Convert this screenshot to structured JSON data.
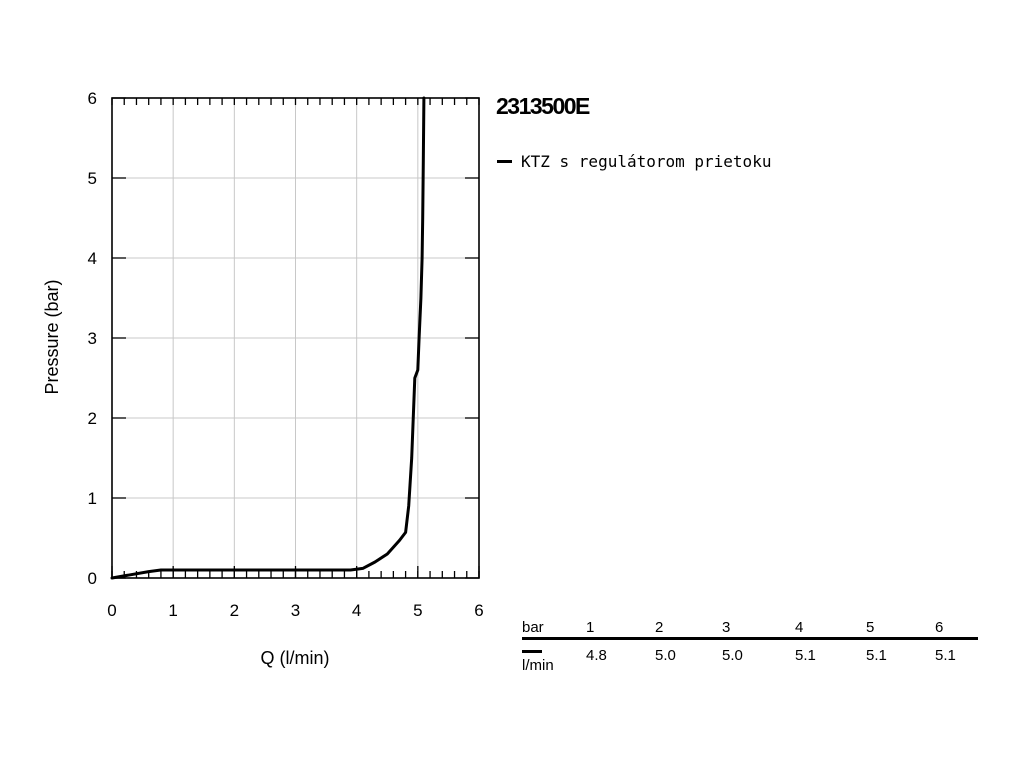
{
  "chart_data": {
    "type": "line",
    "title": "2313500E",
    "xlabel": "Q (l/min)",
    "ylabel": "Pressure (bar)",
    "xlim": [
      0,
      6
    ],
    "ylim": [
      0,
      6
    ],
    "x_ticks": [
      "0",
      "1",
      "2",
      "3",
      "4",
      "5",
      "6"
    ],
    "y_ticks": [
      "0",
      "1",
      "2",
      "3",
      "4",
      "5",
      "6"
    ],
    "grid": true,
    "legend_position": "right",
    "series": [
      {
        "name": "KTZ s regulátorom prietoku",
        "color": "#000000",
        "x": [
          0.0,
          0.3,
          0.6,
          0.8,
          1.0,
          2.0,
          3.0,
          3.9,
          4.1,
          4.3,
          4.5,
          4.7,
          4.8,
          4.85,
          4.9,
          4.95,
          5.0,
          5.02,
          5.05,
          5.07,
          5.08,
          5.09,
          5.1
        ],
        "y": [
          0.0,
          0.04,
          0.08,
          0.1,
          0.1,
          0.1,
          0.1,
          0.1,
          0.12,
          0.2,
          0.3,
          0.47,
          0.57,
          0.9,
          1.5,
          2.5,
          2.6,
          3.0,
          3.5,
          4.0,
          4.5,
          5.2,
          6.0
        ]
      }
    ]
  },
  "flow_table": {
    "header_label": "bar",
    "unit_label": "l/min",
    "pressures": [
      "1",
      "2",
      "3",
      "4",
      "5",
      "6"
    ],
    "flows": [
      "4.8",
      "5.0",
      "5.0",
      "5.1",
      "5.1",
      "5.1"
    ]
  }
}
